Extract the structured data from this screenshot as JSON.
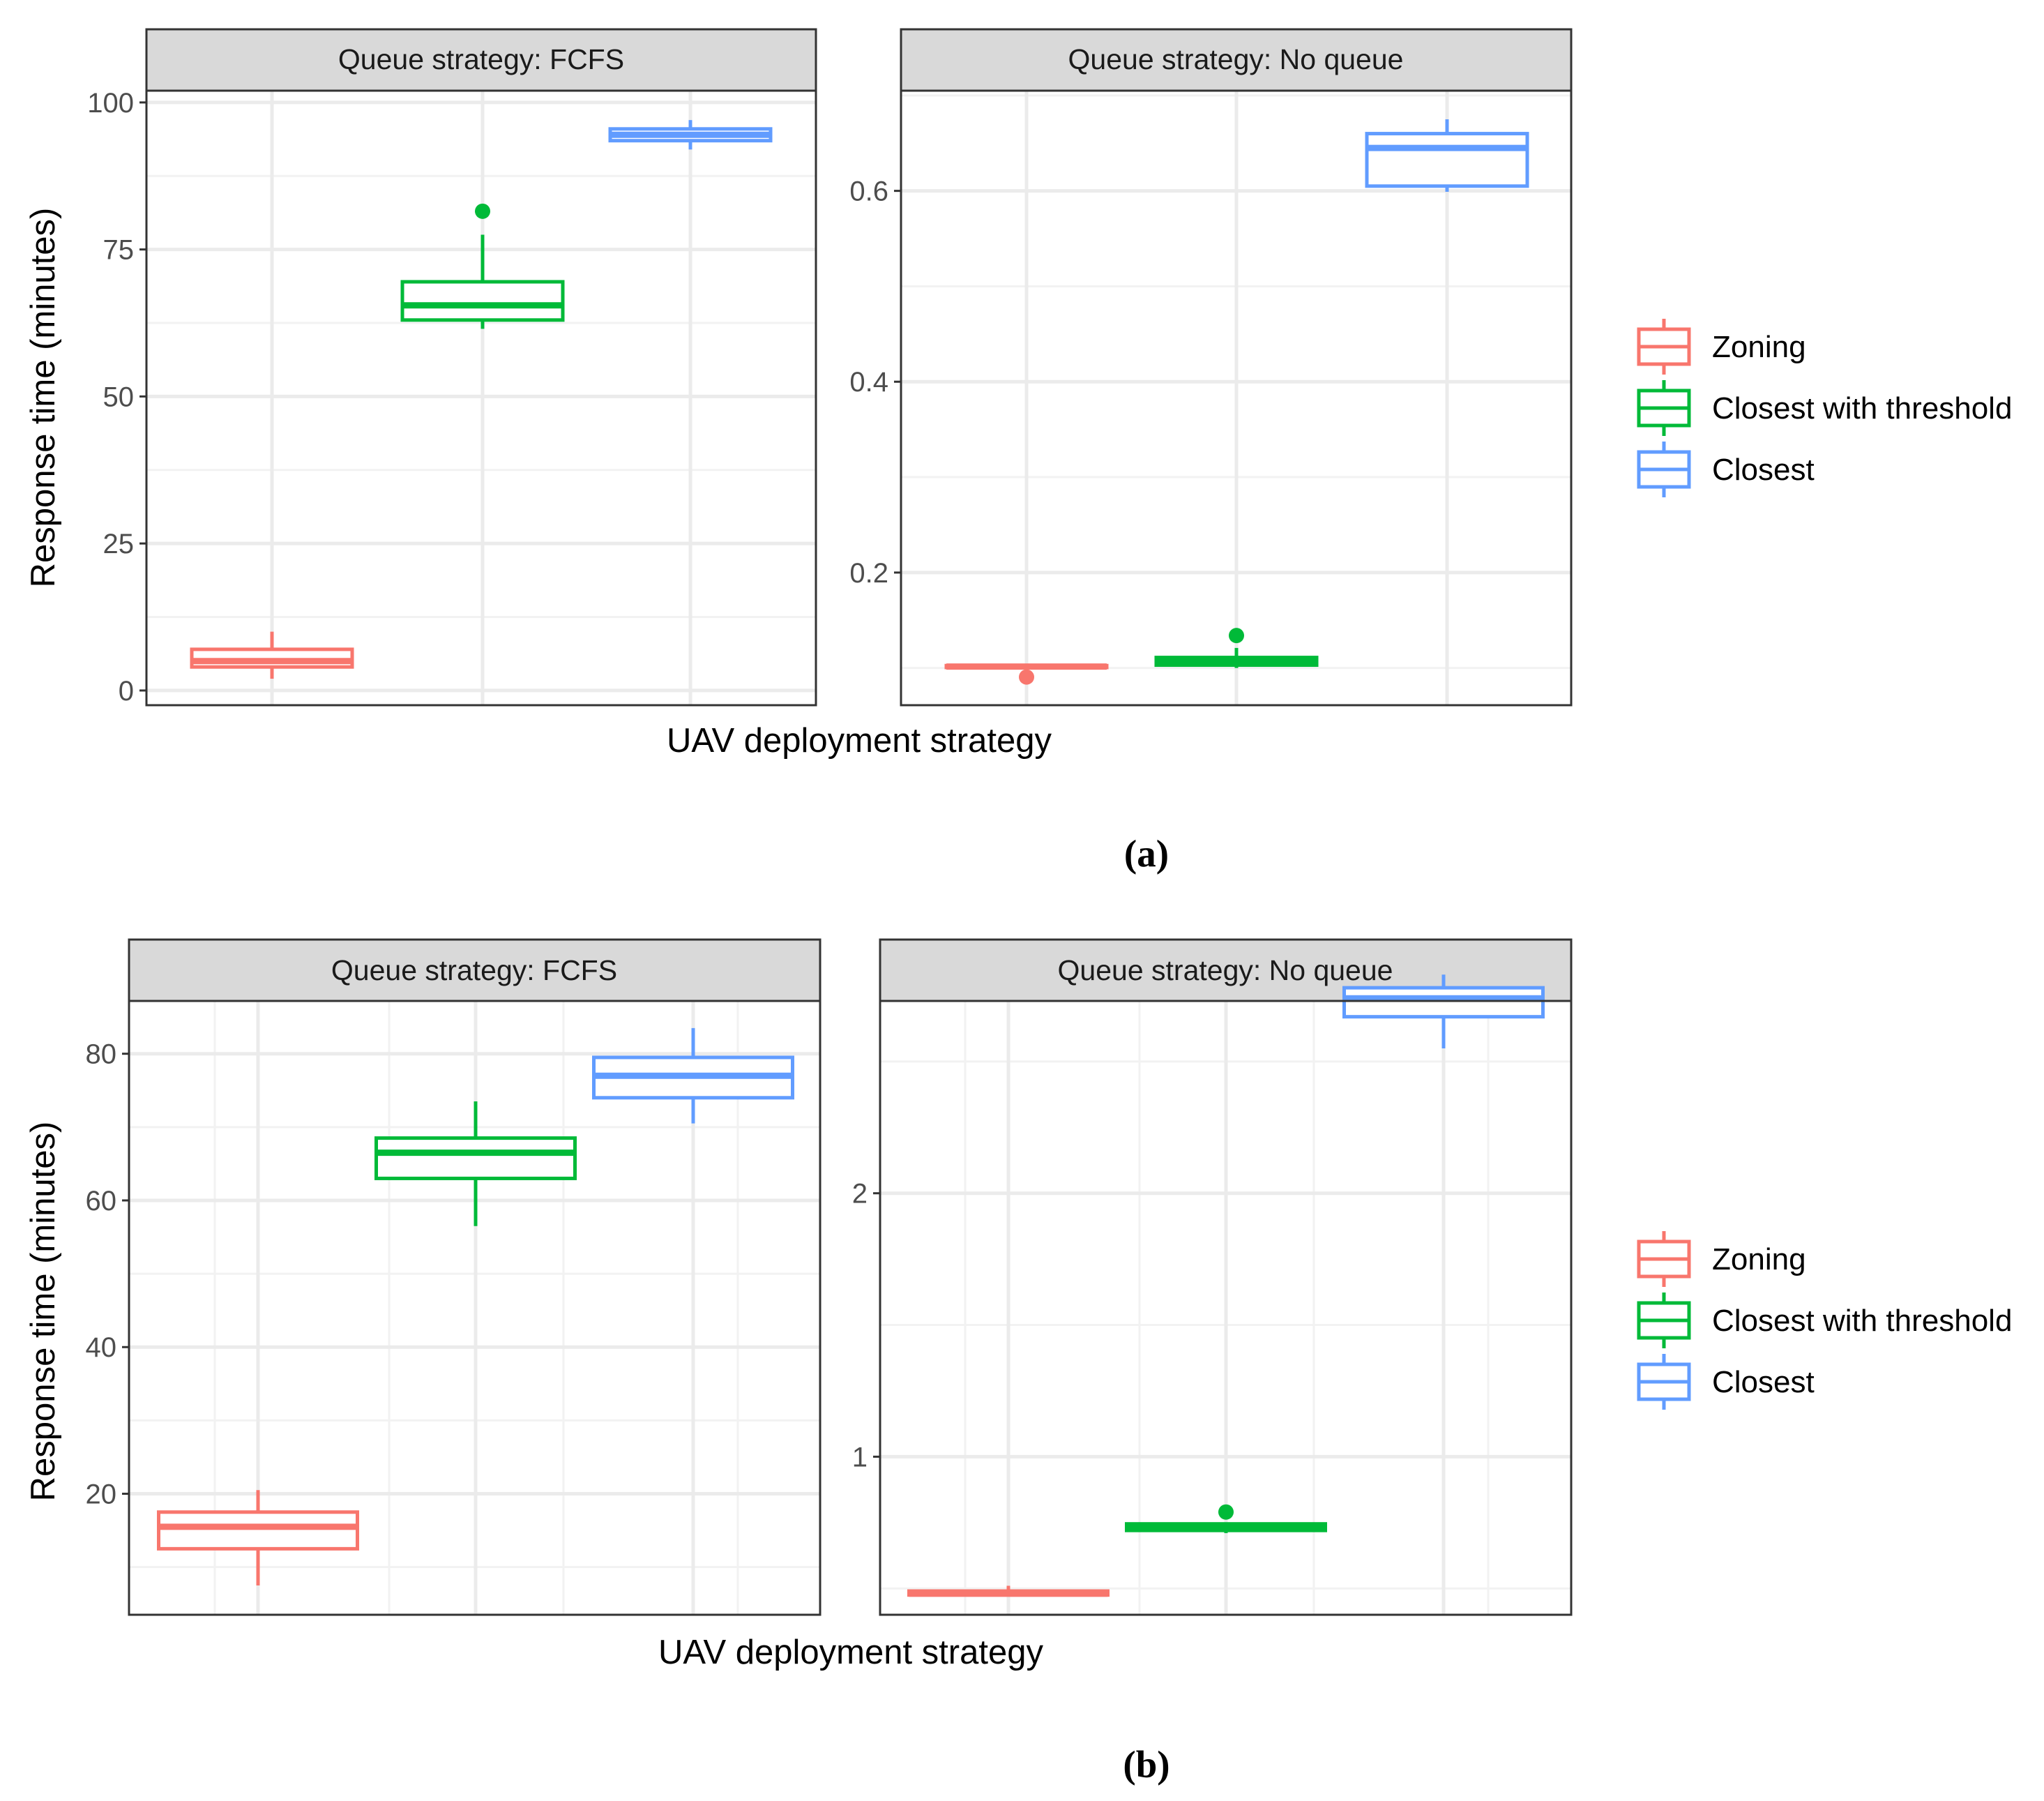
{
  "colors": {
    "zoning": "#F8766D",
    "closest_with_threshold": "#00BA38",
    "closest": "#619CFF",
    "strip_bg": "#D9D9D9",
    "grid_major": "#EBEBEB",
    "grid_minor": "#F2F2F2",
    "panel_border": "#333333",
    "text_dark": "#000000",
    "tick_text": "#4D4D4D"
  },
  "legend": {
    "entries": [
      {
        "key": "zoning",
        "label": "Zoning"
      },
      {
        "key": "closest_with_threshold",
        "label": "Closest with threshold"
      },
      {
        "key": "closest",
        "label": "Closest"
      }
    ]
  },
  "chart_data": [
    {
      "caption": "(a)",
      "xlabel": "UAV deployment strategy",
      "ylabel": "Response time (minutes)",
      "panels": [
        {
          "strip": "Queue strategy: FCFS",
          "type": "boxplot",
          "ylim": [
            -2.5,
            102
          ],
          "ticks": [
            0,
            25,
            50,
            75,
            100
          ],
          "tick_labels": [
            "0",
            "25",
            "50",
            "75",
            "100"
          ],
          "minor_ticks": [
            12.5,
            37.5,
            62.5,
            87.5
          ],
          "boxes": [
            {
              "group": "zoning",
              "whisker_low": 2,
              "q1": 4,
              "median": 5,
              "q3": 7,
              "whisker_high": 10,
              "outliers": []
            },
            {
              "group": "closest_with_threshold",
              "whisker_low": 61.5,
              "q1": 63,
              "median": 65.5,
              "q3": 69.5,
              "whisker_high": 77.5,
              "outliers": [
                81.5
              ]
            },
            {
              "group": "closest",
              "whisker_low": 92,
              "q1": 93.5,
              "median": 94.5,
              "q3": 95.5,
              "whisker_high": 97,
              "outliers": []
            }
          ]
        },
        {
          "strip": "Queue strategy: No queue",
          "type": "boxplot",
          "ylim": [
            0.061,
            0.705
          ],
          "ticks": [
            0.2,
            0.4,
            0.6
          ],
          "tick_labels": [
            "0.2",
            "0.4",
            "0.6"
          ],
          "minor_ticks": [
            0.1,
            0.3,
            0.5,
            0.7
          ],
          "boxes": [
            {
              "group": "zoning",
              "whisker_low": 0.1005,
              "q1": 0.1005,
              "median": 0.1015,
              "q3": 0.1025,
              "whisker_high": 0.1025,
              "outliers": [
                0.0905
              ]
            },
            {
              "group": "closest_with_threshold",
              "whisker_low": 0.1,
              "q1": 0.103,
              "median": 0.106,
              "q3": 0.111,
              "whisker_high": 0.121,
              "outliers": [
                0.134
              ]
            },
            {
              "group": "closest",
              "whisker_low": 0.599,
              "q1": 0.605,
              "median": 0.645,
              "q3": 0.66,
              "whisker_high": 0.675,
              "outliers": []
            }
          ]
        }
      ]
    },
    {
      "caption": "(b)",
      "xlabel": "UAV deployment strategy",
      "ylabel": "Response time (minutes)",
      "panels": [
        {
          "strip": "Queue strategy: FCFS",
          "type": "boxplot",
          "ylim": [
            3.5,
            87.2
          ],
          "ticks": [
            20,
            40,
            60,
            80
          ],
          "tick_labels": [
            "20",
            "40",
            "60",
            "80"
          ],
          "minor_ticks": [
            10,
            30,
            50,
            70
          ],
          "boxes": [
            {
              "group": "zoning",
              "whisker_low": 7.5,
              "q1": 12.5,
              "median": 15.5,
              "q3": 17.5,
              "whisker_high": 20.5,
              "outliers": []
            },
            {
              "group": "closest_with_threshold",
              "whisker_low": 56.5,
              "q1": 63,
              "median": 66.5,
              "q3": 68.5,
              "whisker_high": 73.5,
              "outliers": []
            },
            {
              "group": "closest",
              "whisker_low": 70.5,
              "q1": 74,
              "median": 77,
              "q3": 79.5,
              "whisker_high": 83.5,
              "outliers": []
            }
          ]
        },
        {
          "strip": "Queue strategy: No queue",
          "type": "boxplot",
          "ylim": [
            0.4,
            2.73
          ],
          "ticks": [
            1,
            2
          ],
          "tick_labels": [
            "1",
            "2"
          ],
          "minor_ticks": [
            0.5,
            1.5,
            2.5
          ],
          "boxes": [
            {
              "group": "zoning",
              "whisker_low": 0.47,
              "q1": 0.475,
              "median": 0.48,
              "q3": 0.49,
              "whisker_high": 0.51,
              "outliers": []
            },
            {
              "group": "closest_with_threshold",
              "whisker_low": 0.71,
              "q1": 0.72,
              "median": 0.73,
              "q3": 0.745,
              "whisker_high": 0.745,
              "outliers": [
                0.79
              ]
            },
            {
              "group": "closest",
              "whisker_low": 2.55,
              "q1": 2.67,
              "median": 2.74,
              "q3": 2.78,
              "whisker_high": 2.83,
              "outliers": []
            }
          ]
        }
      ]
    }
  ]
}
